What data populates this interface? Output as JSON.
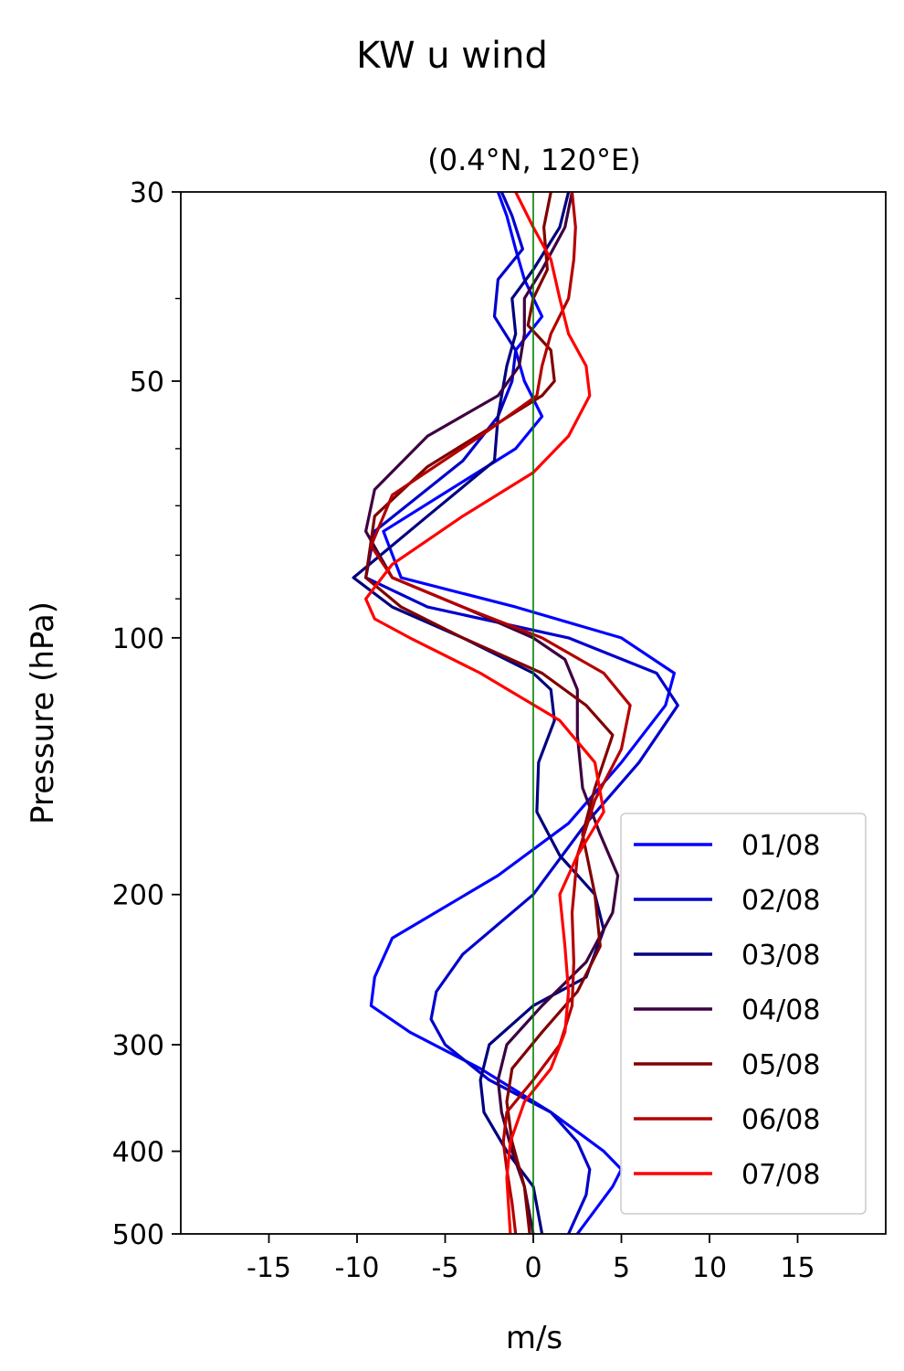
{
  "chart_data": {
    "type": "line",
    "title": "KW u wind",
    "subtitle": "(0.4°N, 120°E)",
    "xlabel": "m/s",
    "ylabel": "Pressure (hPa)",
    "xlim": [
      -20,
      20
    ],
    "ylim": [
      500,
      30
    ],
    "yscale": "log",
    "xticks": [
      -15,
      -10,
      -5,
      0,
      5,
      10,
      15
    ],
    "xtick_labels": [
      "-15",
      "-10",
      "-5",
      "0",
      "5",
      "10",
      "15"
    ],
    "yticks": [
      30,
      50,
      100,
      200,
      300,
      400,
      500
    ],
    "ytick_labels": [
      "30",
      "50",
      "100",
      "200",
      "300",
      "400",
      "500"
    ],
    "zero_line_color": "#008000",
    "legend_position": "lower-right",
    "grid": false,
    "series": [
      {
        "name": "01/08",
        "color": "#0000ff",
        "x": [
          -2.0,
          -1.5,
          -1.0,
          -0.5,
          0.5,
          -1.0,
          -0.5,
          0.5,
          -1.0,
          -8.5,
          -7.5,
          -1.0,
          5.0,
          8.0,
          7.5,
          5.0,
          2.0,
          -2.0,
          -8.0,
          -9.0,
          -9.2,
          -7.0,
          -3.0,
          1.0,
          4.0,
          5.0,
          4.5,
          2.5
        ],
        "y": [
          30,
          32,
          35,
          38,
          42,
          46,
          50,
          55,
          60,
          75,
          85,
          92,
          100,
          110,
          120,
          140,
          165,
          190,
          225,
          250,
          270,
          290,
          320,
          360,
          400,
          420,
          440,
          500
        ]
      },
      {
        "name": "02/08",
        "color": "#0000cc",
        "x": [
          -1.8,
          -1.2,
          -0.6,
          -2.0,
          -2.2,
          -1.0,
          -1.2,
          -2.0,
          -4.0,
          -9.0,
          -9.5,
          -6.0,
          2.0,
          7.0,
          8.2,
          6.0,
          3.0,
          0.0,
          -4.0,
          -5.5,
          -5.8,
          -5.0,
          -2.5,
          1.0,
          2.5,
          3.2,
          3.0,
          2.0
        ],
        "y": [
          30,
          32,
          35,
          38,
          42,
          46,
          50,
          55,
          62,
          75,
          85,
          92,
          100,
          110,
          120,
          140,
          165,
          200,
          235,
          260,
          280,
          300,
          330,
          360,
          390,
          420,
          450,
          500
        ]
      },
      {
        "name": "03/08",
        "color": "#000080",
        "x": [
          2.0,
          1.5,
          0.0,
          -1.2,
          -1.0,
          -1.5,
          -2.0,
          -2.2,
          -6.0,
          -10.2,
          -8.0,
          -4.0,
          0.0,
          1.0,
          1.2,
          0.3,
          0.2,
          1.5,
          3.5,
          4.0,
          3.0,
          0.0,
          -2.5,
          -3.0,
          -2.8,
          -1.5,
          0.0,
          0.5
        ],
        "y": [
          30,
          33,
          37,
          40,
          44,
          48,
          55,
          62,
          72,
          85,
          92,
          100,
          110,
          115,
          125,
          140,
          160,
          180,
          200,
          220,
          250,
          270,
          300,
          330,
          360,
          400,
          440,
          500
        ]
      },
      {
        "name": "04/08",
        "color": "#3d0040",
        "x": [
          2.2,
          1.8,
          0.5,
          -0.5,
          -0.5,
          -0.8,
          -2.0,
          -6.0,
          -9.0,
          -9.5,
          -8.0,
          -4.0,
          0.0,
          1.8,
          2.5,
          2.5,
          2.8,
          3.8,
          4.8,
          4.5,
          3.0,
          0.5,
          -1.5,
          -2.0,
          -1.8,
          -1.2,
          -0.5,
          0.0
        ],
        "y": [
          30,
          33,
          37,
          40,
          44,
          48,
          52,
          58,
          67,
          75,
          85,
          92,
          100,
          106,
          115,
          130,
          150,
          170,
          190,
          210,
          240,
          270,
          300,
          330,
          360,
          400,
          440,
          500
        ]
      },
      {
        "name": "05/08",
        "color": "#800000",
        "x": [
          1.0,
          0.6,
          0.8,
          0.0,
          -0.3,
          1.0,
          1.2,
          0.5,
          -2.0,
          -6.0,
          -9.0,
          -9.5,
          -7.5,
          -4.0,
          0.5,
          3.0,
          4.5,
          3.5,
          2.8,
          3.5,
          3.8,
          2.5,
          0.5,
          -1.2,
          -1.5,
          -1.2,
          -0.5,
          -0.2
        ],
        "y": [
          30,
          33,
          37,
          40,
          43,
          46,
          50,
          52,
          56,
          63,
          72,
          85,
          92,
          100,
          110,
          120,
          130,
          150,
          170,
          200,
          230,
          260,
          290,
          320,
          350,
          390,
          440,
          500
        ]
      },
      {
        "name": "06/08",
        "color": "#b30000",
        "x": [
          2.2,
          2.4,
          2.3,
          2.0,
          1.0,
          0.5,
          0.2,
          -3.0,
          -8.0,
          -9.2,
          -8.0,
          -4.0,
          0.5,
          4.0,
          5.5,
          5.0,
          3.5,
          2.5,
          2.2,
          2.3,
          2.2,
          1.5,
          0.0,
          -1.5,
          -1.7,
          -1.5,
          -1.2,
          -1.0
        ],
        "y": [
          30,
          33,
          36,
          40,
          44,
          48,
          52,
          58,
          68,
          78,
          85,
          92,
          100,
          110,
          120,
          135,
          155,
          180,
          210,
          240,
          270,
          300,
          330,
          360,
          390,
          420,
          460,
          500
        ]
      },
      {
        "name": "07/08",
        "color": "#ff0000",
        "x": [
          -1.0,
          0.0,
          1.0,
          1.5,
          2.0,
          3.0,
          3.2,
          2.0,
          0.0,
          -4.0,
          -8.0,
          -9.5,
          -9.0,
          -7.0,
          -3.0,
          1.5,
          3.5,
          4.0,
          2.5,
          1.5,
          1.8,
          2.0,
          1.8,
          1.0,
          -0.5,
          -1.3,
          -1.5,
          -1.3
        ],
        "y": [
          30,
          33,
          36,
          40,
          44,
          48,
          52,
          58,
          64,
          72,
          82,
          90,
          95,
          100,
          110,
          125,
          140,
          160,
          180,
          200,
          230,
          260,
          290,
          320,
          350,
          390,
          430,
          500
        ]
      }
    ]
  }
}
